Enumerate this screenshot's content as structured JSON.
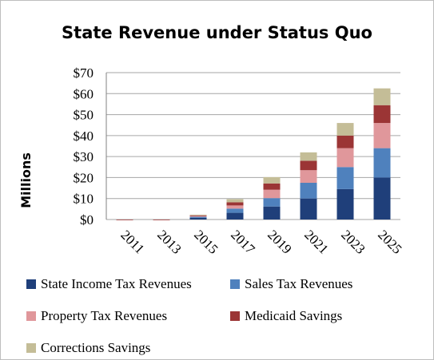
{
  "chart_data": {
    "type": "bar",
    "stacked": true,
    "title": "State Revenue under Status Quo",
    "ylabel": "Millions",
    "xlabel": "",
    "categories": [
      "2011",
      "2013",
      "2015",
      "2017",
      "2019",
      "2021",
      "2023",
      "2025"
    ],
    "ylim": [
      0,
      70
    ],
    "yticks": [
      "$0",
      "$10",
      "$20",
      "$30",
      "$40",
      "$50",
      "$60",
      "$70"
    ],
    "grid": true,
    "legend_position": "bottom",
    "series": [
      {
        "name": "State Income Tax Revenues",
        "color": "#1f3f7a",
        "values": [
          0,
          0,
          0.8,
          3.2,
          6.2,
          10.0,
          14.5,
          20.0
        ]
      },
      {
        "name": "Sales Tax Revenues",
        "color": "#4f81bd",
        "values": [
          0,
          0,
          0.5,
          2.0,
          4.0,
          7.5,
          10.5,
          14.0
        ]
      },
      {
        "name": "Property Tax Revenues",
        "color": "#e0979b",
        "values": [
          0,
          0,
          0.4,
          1.5,
          4.0,
          6.0,
          9.0,
          12.0
        ]
      },
      {
        "name": "Medicaid Savings",
        "color": "#9b3535",
        "values": [
          -0.3,
          -0.3,
          0.3,
          1.5,
          3.0,
          4.5,
          6.0,
          8.5
        ]
      },
      {
        "name": "Corrections Savings",
        "color": "#c4bd97",
        "values": [
          0,
          0,
          0.3,
          1.5,
          3.0,
          4.0,
          6.0,
          8.0
        ]
      }
    ]
  }
}
